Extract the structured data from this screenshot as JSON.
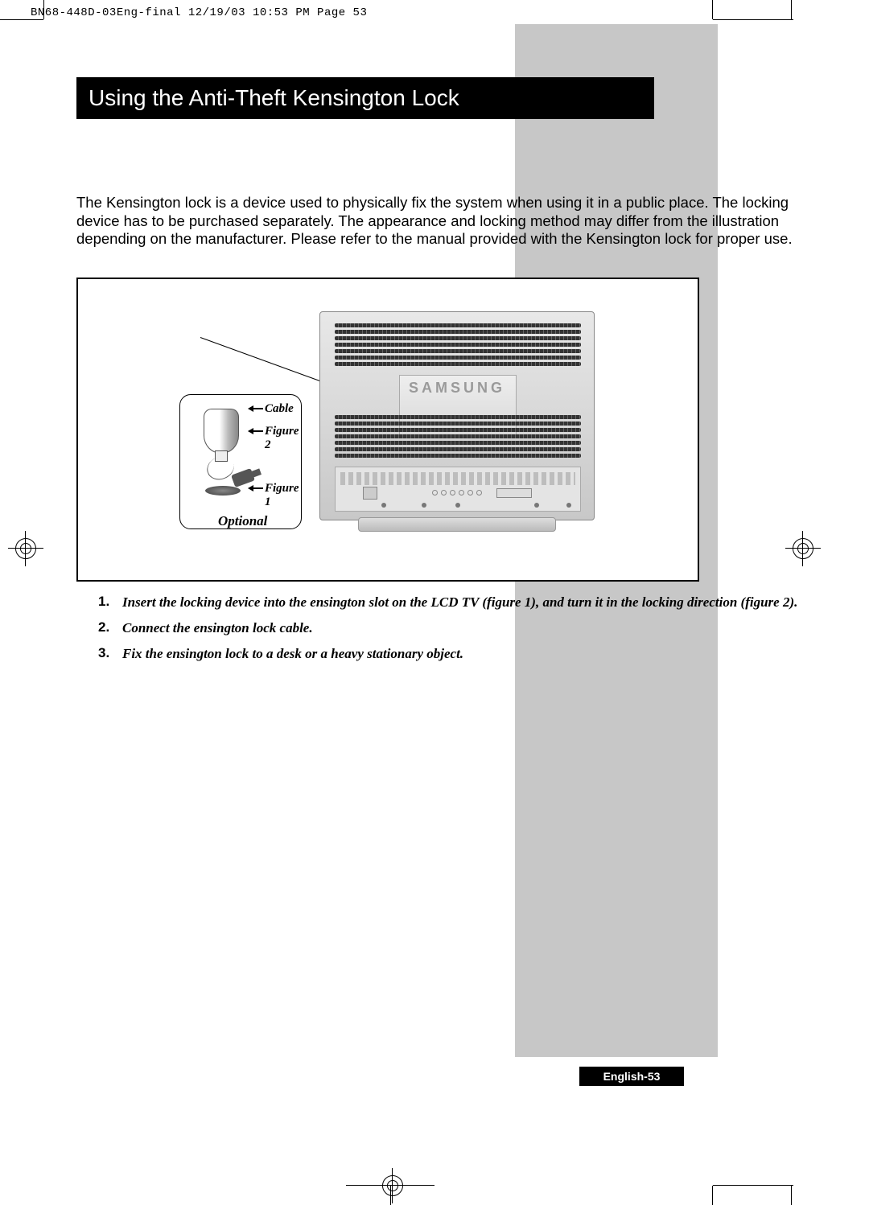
{
  "header_slug": "BN68-448D-03Eng-final  12/19/03 10:53 PM  Page 53",
  "title": "Using the Anti-Theft Kensington Lock",
  "intro_text": "The Kensington lock is a device used to physically fix the system when using it in a public place. The locking device has to be purchased separately. The appearance and locking method may differ from the illustration depending on the manufacturer. Please refer to the manual provided with the Kensington lock for proper use.",
  "figure": {
    "cable_label": "Cable",
    "figure2_label": "Figure 2",
    "figure1_label": "Figure 1",
    "optional_label": "Optional",
    "brand_text": "SAMSUNG"
  },
  "steps": [
    {
      "num": "1.",
      "text": "Insert the locking device into the ensington slot on the LCD TV (figure 1), and turn it in the locking direction (figure 2)."
    },
    {
      "num": "2.",
      "text": "Connect the ensington lock cable."
    },
    {
      "num": "3.",
      "text": "Fix the ensington lock to a desk or a heavy stationary object."
    }
  ],
  "page_footer": "English-53",
  "colors": {
    "sidebar_grey": "#c7c7c7",
    "title_bg": "#000000",
    "title_fg": "#ffffff",
    "footer_bg": "#000000",
    "footer_fg": "#ffffff",
    "tv_body": "#d5d5d5"
  }
}
